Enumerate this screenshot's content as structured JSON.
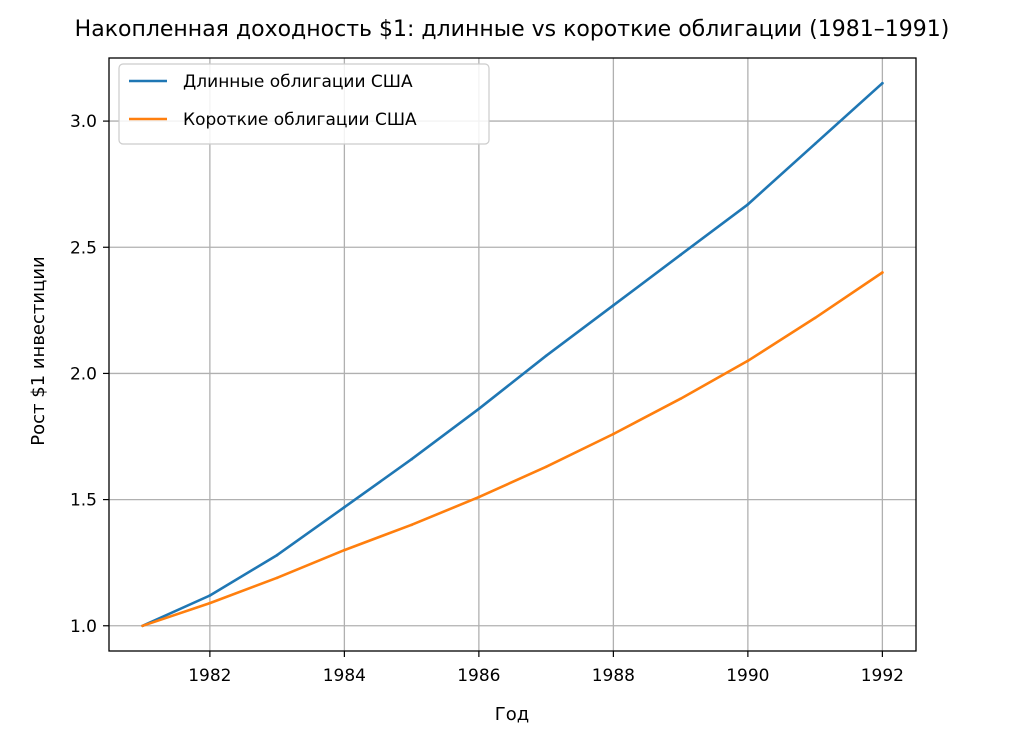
{
  "chart_data": {
    "type": "line",
    "title": "Накопленная доходность $1: длинные vs короткие облигации (1981–1991)",
    "xlabel": "Год",
    "ylabel": "Рост $1 инвестиции",
    "xlim": [
      1980.5,
      1992.5
    ],
    "ylim": [
      0.9,
      3.25
    ],
    "xticks": [
      1982,
      1984,
      1986,
      1988,
      1990,
      1992
    ],
    "xtick_labels": [
      "1982",
      "1984",
      "1986",
      "1988",
      "1990",
      "1992"
    ],
    "yticks": [
      1.0,
      1.5,
      2.0,
      2.5,
      3.0
    ],
    "ytick_labels": [
      "1.0",
      "1.5",
      "2.0",
      "2.5",
      "3.0"
    ],
    "grid": true,
    "legend_position": "top-left",
    "x": [
      1981,
      1982,
      1983,
      1984,
      1985,
      1986,
      1987,
      1988,
      1989,
      1990,
      1991,
      1992
    ],
    "series": [
      {
        "name": "Длинные облигации США",
        "color": "#1f77b4",
        "values": [
          1.0,
          1.12,
          1.28,
          1.47,
          1.66,
          1.86,
          2.07,
          2.27,
          2.47,
          2.67,
          2.91,
          3.15
        ]
      },
      {
        "name": "Короткие облигации США",
        "color": "#ff7f0e",
        "values": [
          1.0,
          1.09,
          1.19,
          1.3,
          1.4,
          1.51,
          1.63,
          1.76,
          1.9,
          2.05,
          2.22,
          2.4
        ]
      }
    ]
  }
}
